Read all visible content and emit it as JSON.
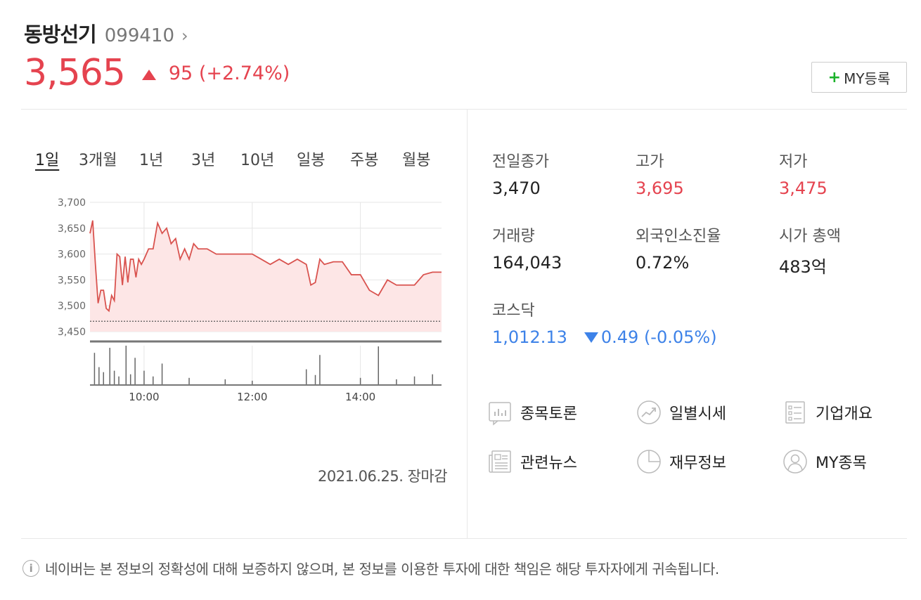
{
  "stock": {
    "name": "동방선기",
    "code": "099410",
    "price": "3,565",
    "change": "95 (+2.74%)",
    "my_button_label": "MY등록"
  },
  "tabs": [
    "1일",
    "3개월",
    "1년",
    "3년",
    "10년",
    "일봉",
    "주봉",
    "월봉"
  ],
  "chart_footer": "2021.06.25. 장마감",
  "info": {
    "prev_close_label": "전일종가",
    "prev_close": "3,470",
    "high_label": "고가",
    "high": "3,695",
    "low_label": "저가",
    "low": "3,475",
    "volume_label": "거래량",
    "volume": "164,043",
    "foreign_label": "외국인소진율",
    "foreign": "0.72%",
    "mcap_label": "시가 총액",
    "mcap": "483억",
    "kosdaq_label": "코스닥",
    "kosdaq_value": "1,012.13",
    "kosdaq_change": "0.49 (-0.05%)"
  },
  "links": [
    "종목토론",
    "일별시세",
    "기업개요",
    "관련뉴스",
    "재무정보",
    "MY종목"
  ],
  "notice": "네이버는 본 정보의 정확성에 대해 보증하지 않으며, 본 정보를 이용한 투자에 대한 책임은 해당 투자자에게 귀속됩니다.",
  "colors": {
    "up": "#e5434f",
    "down": "#3d82e8",
    "line": "#d9534f",
    "fill": "#fde6e6"
  },
  "chart_data": {
    "type": "area",
    "yticks": [
      "3,700",
      "3,650",
      "3,600",
      "3,550",
      "3,500",
      "3,450"
    ],
    "xticks": [
      "10:00",
      "12:00",
      "14:00"
    ],
    "ylim": [
      3450,
      3700
    ],
    "prev_close": 3470,
    "x_range": [
      "09:00",
      "15:30"
    ],
    "series": [
      {
        "x": [
          "09:00",
          "09:03",
          "09:06",
          "09:09",
          "09:12",
          "09:15",
          "09:18",
          "09:21",
          "09:24",
          "09:27",
          "09:30",
          "09:33",
          "09:36",
          "09:39",
          "09:42",
          "09:45",
          "09:48",
          "09:51",
          "09:54",
          "09:57",
          "10:00",
          "10:05",
          "10:10",
          "10:15",
          "10:20",
          "10:25",
          "10:30",
          "10:35",
          "10:40",
          "10:45",
          "10:50",
          "10:55",
          "11:00",
          "11:10",
          "11:20",
          "11:30",
          "11:40",
          "11:50",
          "12:00",
          "12:10",
          "12:20",
          "12:30",
          "12:40",
          "12:50",
          "13:00",
          "13:05",
          "13:10",
          "13:15",
          "13:20",
          "13:30",
          "13:40",
          "13:50",
          "14:00",
          "14:10",
          "14:20",
          "14:30",
          "14:40",
          "14:50",
          "15:00",
          "15:10",
          "15:20",
          "15:30"
        ],
        "y": [
          3640,
          3665,
          3580,
          3505,
          3530,
          3530,
          3495,
          3490,
          3520,
          3510,
          3600,
          3595,
          3540,
          3595,
          3545,
          3590,
          3590,
          3555,
          3590,
          3580,
          3590,
          3610,
          3610,
          3660,
          3640,
          3650,
          3620,
          3630,
          3590,
          3610,
          3590,
          3620,
          3610,
          3610,
          3600,
          3600,
          3600,
          3600,
          3600,
          3590,
          3580,
          3590,
          3580,
          3590,
          3580,
          3540,
          3545,
          3590,
          3580,
          3585,
          3585,
          3560,
          3560,
          3530,
          3520,
          3550,
          3540,
          3540,
          3540,
          3560,
          3565,
          3565
        ]
      }
    ],
    "volume": [
      {
        "x": "09:05",
        "v": 45
      },
      {
        "x": "09:10",
        "v": 25
      },
      {
        "x": "09:15",
        "v": 18
      },
      {
        "x": "09:22",
        "v": 52
      },
      {
        "x": "09:27",
        "v": 20
      },
      {
        "x": "09:32",
        "v": 12
      },
      {
        "x": "09:40",
        "v": 55
      },
      {
        "x": "09:45",
        "v": 15
      },
      {
        "x": "09:50",
        "v": 38
      },
      {
        "x": "10:00",
        "v": 20
      },
      {
        "x": "10:10",
        "v": 12
      },
      {
        "x": "10:20",
        "v": 30
      },
      {
        "x": "10:50",
        "v": 10
      },
      {
        "x": "11:30",
        "v": 8
      },
      {
        "x": "12:00",
        "v": 6
      },
      {
        "x": "13:00",
        "v": 22
      },
      {
        "x": "13:10",
        "v": 14
      },
      {
        "x": "13:15",
        "v": 42
      },
      {
        "x": "14:00",
        "v": 10
      },
      {
        "x": "14:20",
        "v": 54
      },
      {
        "x": "14:40",
        "v": 8
      },
      {
        "x": "15:00",
        "v": 12
      },
      {
        "x": "15:20",
        "v": 15
      }
    ]
  }
}
